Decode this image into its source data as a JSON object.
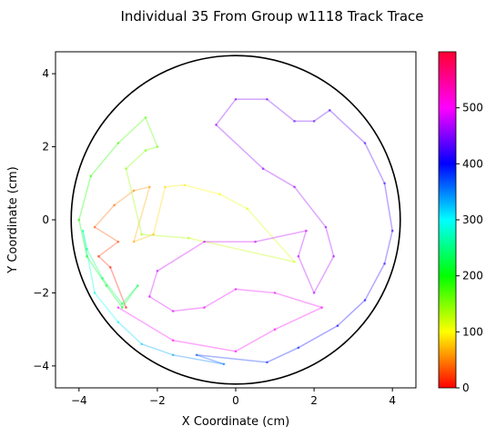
{
  "chart_data": {
    "type": "line",
    "title": "Individual 35 From Group w1118 Track Trace",
    "xlabel": "X Coordinate (cm)",
    "ylabel": "Y Coordinate (cm)",
    "xlim": [
      -4.6,
      4.6
    ],
    "ylim": [
      -4.6,
      4.6
    ],
    "x_ticks": [
      -4,
      -2,
      0,
      2,
      4
    ],
    "y_ticks": [
      -4,
      -2,
      0,
      2,
      4
    ],
    "x_tick_labels": [
      "−4",
      "−2",
      "0",
      "2",
      "4"
    ],
    "y_tick_labels": [
      "−4",
      "−2",
      "0",
      "2",
      "4"
    ],
    "arena": {
      "shape": "circle",
      "center": [
        0,
        0
      ],
      "radius": 4.2,
      "color": "#000000"
    },
    "colorbar": {
      "colormap": "hsv",
      "min": 0,
      "max": 600,
      "ticks": [
        0,
        100,
        200,
        300,
        400,
        500
      ],
      "tick_labels": [
        "0",
        "100",
        "200",
        "300",
        "400",
        "500"
      ]
    },
    "series": [
      {
        "t": 0,
        "x": -2.8,
        "y": -2.4
      },
      {
        "t": 10,
        "x": -3.2,
        "y": -1.3
      },
      {
        "t": 20,
        "x": -3.5,
        "y": -1.0
      },
      {
        "t": 30,
        "x": -3.0,
        "y": -0.6
      },
      {
        "t": 40,
        "x": -3.6,
        "y": -0.2
      },
      {
        "t": 50,
        "x": -3.1,
        "y": 0.4
      },
      {
        "t": 60,
        "x": -2.6,
        "y": 0.8
      },
      {
        "t": 70,
        "x": -2.2,
        "y": 0.9
      },
      {
        "t": 80,
        "x": -2.6,
        "y": -0.6
      },
      {
        "t": 90,
        "x": -2.1,
        "y": -0.4
      },
      {
        "t": 100,
        "x": -1.8,
        "y": 0.9
      },
      {
        "t": 110,
        "x": -1.3,
        "y": 0.95
      },
      {
        "t": 120,
        "x": -0.4,
        "y": 0.7
      },
      {
        "t": 130,
        "x": 0.3,
        "y": 0.3
      },
      {
        "t": 140,
        "x": 1.5,
        "y": -1.15
      },
      {
        "t": 150,
        "x": -1.2,
        "y": -0.5
      },
      {
        "t": 160,
        "x": -2.4,
        "y": -0.4
      },
      {
        "t": 170,
        "x": -2.8,
        "y": 1.4
      },
      {
        "t": 180,
        "x": -2.3,
        "y": 1.9
      },
      {
        "t": 190,
        "x": -2.0,
        "y": 2.0
      },
      {
        "t": 200,
        "x": -2.3,
        "y": 2.8
      },
      {
        "t": 210,
        "x": -3.0,
        "y": 2.1
      },
      {
        "t": 220,
        "x": -3.7,
        "y": 1.2
      },
      {
        "t": 230,
        "x": -4.0,
        "y": 0.0
      },
      {
        "t": 240,
        "x": -3.8,
        "y": -1.0
      },
      {
        "t": 250,
        "x": -3.3,
        "y": -1.8
      },
      {
        "t": 260,
        "x": -2.9,
        "y": -2.4
      },
      {
        "t": 270,
        "x": -2.5,
        "y": -1.8
      },
      {
        "t": 280,
        "x": -2.9,
        "y": -2.3
      },
      {
        "t": 290,
        "x": -3.4,
        "y": -1.6
      },
      {
        "t": 300,
        "x": -3.8,
        "y": -0.8
      },
      {
        "t": 320,
        "x": -3.9,
        "y": -0.3
      },
      {
        "t": 340,
        "x": -3.6,
        "y": -2.0
      },
      {
        "t": 360,
        "x": -3.0,
        "y": -2.8
      },
      {
        "t": 380,
        "x": -2.4,
        "y": -3.4
      },
      {
        "t": 400,
        "x": -1.6,
        "y": -3.7
      },
      {
        "t": 420,
        "x": -0.3,
        "y": -3.95
      },
      {
        "t": 440,
        "x": -1.0,
        "y": -3.7
      },
      {
        "t": 460,
        "x": 0.8,
        "y": -3.9
      },
      {
        "t": 470,
        "x": 1.6,
        "y": -3.5
      },
      {
        "t": 480,
        "x": 2.6,
        "y": -2.9
      },
      {
        "t": 490,
        "x": 3.3,
        "y": -2.2
      },
      {
        "t": 500,
        "x": 3.8,
        "y": -1.2
      },
      {
        "t": 505,
        "x": 4.0,
        "y": -0.3
      },
      {
        "t": 510,
        "x": 3.8,
        "y": 1.0
      },
      {
        "t": 515,
        "x": 3.3,
        "y": 2.1
      },
      {
        "t": 520,
        "x": 2.4,
        "y": 3.0
      },
      {
        "t": 525,
        "x": 2.0,
        "y": 2.7
      },
      {
        "t": 530,
        "x": 1.5,
        "y": 2.7
      },
      {
        "t": 535,
        "x": 0.8,
        "y": 3.3
      },
      {
        "t": 540,
        "x": 0.0,
        "y": 3.3
      },
      {
        "t": 545,
        "x": -0.5,
        "y": 2.6
      },
      {
        "t": 550,
        "x": 0.7,
        "y": 1.4
      },
      {
        "t": 553,
        "x": 1.5,
        "y": 0.9
      },
      {
        "t": 556,
        "x": 2.3,
        "y": -0.2
      },
      {
        "t": 559,
        "x": 2.5,
        "y": -1.0
      },
      {
        "t": 562,
        "x": 2.0,
        "y": -2.0
      },
      {
        "t": 565,
        "x": 1.6,
        "y": -1.0
      },
      {
        "t": 568,
        "x": 1.8,
        "y": -0.3
      },
      {
        "t": 571,
        "x": 0.5,
        "y": -0.6
      },
      {
        "t": 574,
        "x": -0.8,
        "y": -0.6
      },
      {
        "t": 577,
        "x": -2.0,
        "y": -1.4
      },
      {
        "t": 580,
        "x": -2.2,
        "y": -2.1
      },
      {
        "t": 583,
        "x": -1.6,
        "y": -2.5
      },
      {
        "t": 586,
        "x": -0.8,
        "y": -2.4
      },
      {
        "t": 589,
        "x": 0.0,
        "y": -1.9
      },
      {
        "t": 592,
        "x": 1.0,
        "y": -2.0
      },
      {
        "t": 595,
        "x": 2.2,
        "y": -2.4
      },
      {
        "t": 597,
        "x": 1.0,
        "y": -3.0
      },
      {
        "t": 598,
        "x": 0.0,
        "y": -3.6
      },
      {
        "t": 599,
        "x": -1.6,
        "y": -3.3
      },
      {
        "t": 600,
        "x": -3.0,
        "y": -2.4
      }
    ]
  }
}
